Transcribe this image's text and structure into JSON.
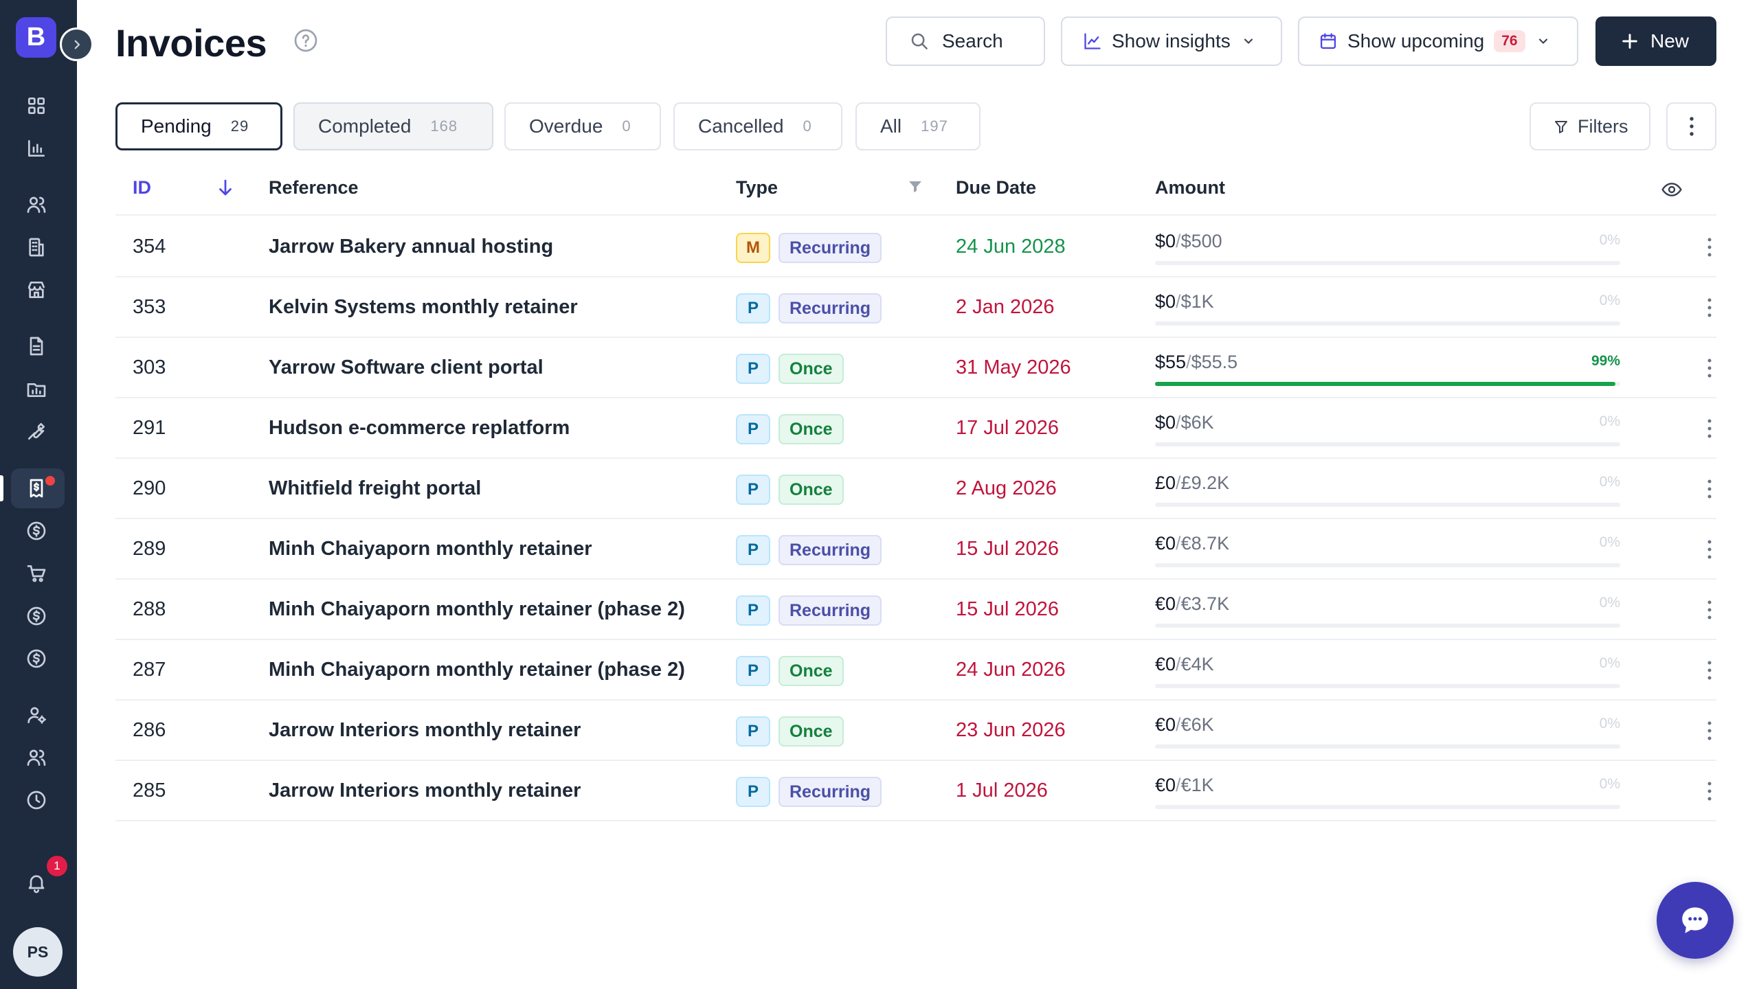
{
  "app": {
    "logo_letter": "B",
    "user_initials": "PS",
    "notification_count": "1"
  },
  "header": {
    "title": "Invoices",
    "search_label": "Search",
    "insights_label": "Show insights",
    "upcoming_label": "Show upcoming",
    "upcoming_count": "76",
    "new_label": "New"
  },
  "tabs": [
    {
      "label": "Pending",
      "count": "29"
    },
    {
      "label": "Completed",
      "count": "168"
    },
    {
      "label": "Overdue",
      "count": "0"
    },
    {
      "label": "Cancelled",
      "count": "0"
    },
    {
      "label": "All",
      "count": "197"
    }
  ],
  "filters_label": "Filters",
  "columns": {
    "id": "ID",
    "reference": "Reference",
    "type": "Type",
    "due_date": "Due Date",
    "amount": "Amount"
  },
  "rows": [
    {
      "id": "354",
      "reference": "Jarrow Bakery annual hosting",
      "code": "M",
      "type": "Recurring",
      "due": "24 Jun 2028",
      "paid": "$0",
      "total": "$500",
      "pct": "0%",
      "progress": 0
    },
    {
      "id": "353",
      "reference": "Kelvin Systems monthly retainer",
      "code": "P",
      "type": "Recurring",
      "due": "2 Jan 2026",
      "paid": "$0",
      "total": "$1K",
      "pct": "0%",
      "progress": 0
    },
    {
      "id": "303",
      "reference": "Yarrow Software client portal",
      "code": "P",
      "type": "Once",
      "due": "31 May 2026",
      "paid": "$55",
      "total": "$55.5",
      "pct": "99%",
      "progress": 0.99
    },
    {
      "id": "291",
      "reference": "Hudson e-commerce replatform",
      "code": "P",
      "type": "Once",
      "due": "17 Jul 2026",
      "paid": "$0",
      "total": "$6K",
      "pct": "0%",
      "progress": 0
    },
    {
      "id": "290",
      "reference": "Whitfield freight portal",
      "code": "P",
      "type": "Once",
      "due": "2 Aug 2026",
      "paid": "£0",
      "total": "£9.2K",
      "pct": "0%",
      "progress": 0
    },
    {
      "id": "289",
      "reference": "Minh Chaiyaporn monthly retainer",
      "code": "P",
      "type": "Recurring",
      "due": "15 Jul 2026",
      "paid": "€0",
      "total": "€8.7K",
      "pct": "0%",
      "progress": 0
    },
    {
      "id": "288",
      "reference": "Minh Chaiyaporn monthly retainer (phase 2)",
      "code": "P",
      "type": "Recurring",
      "due": "15 Jul 2026",
      "paid": "€0",
      "total": "€3.7K",
      "pct": "0%",
      "progress": 0
    },
    {
      "id": "287",
      "reference": "Minh Chaiyaporn monthly retainer (phase 2)",
      "code": "P",
      "type": "Once",
      "due": "24 Jun 2026",
      "paid": "€0",
      "total": "€4K",
      "pct": "0%",
      "progress": 0
    },
    {
      "id": "286",
      "reference": "Jarrow Interiors monthly retainer",
      "code": "P",
      "type": "Once",
      "due": "23 Jun 2026",
      "paid": "€0",
      "total": "€6K",
      "pct": "0%",
      "progress": 0
    },
    {
      "id": "285",
      "reference": "Jarrow Interiors monthly retainer",
      "code": "P",
      "type": "Recurring",
      "due": "1 Jul 2026",
      "paid": "€0",
      "total": "€1K",
      "pct": "0%",
      "progress": 0
    }
  ],
  "colors": {
    "sidebar": "#1e2a3e",
    "accent": "#4f46e5",
    "overdue_date": "#c0143c",
    "future_date": "#15924b",
    "progress_fill": "#16a34a"
  }
}
